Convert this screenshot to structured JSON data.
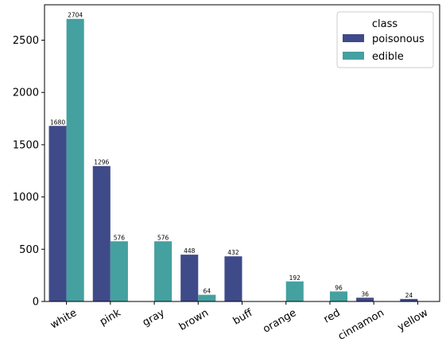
{
  "chart_data": {
    "type": "bar",
    "categories": [
      "white",
      "pink",
      "gray",
      "brown",
      "buff",
      "orange",
      "red",
      "cinnamon",
      "yellow"
    ],
    "series": [
      {
        "name": "poisonous",
        "color": "#3f4a89",
        "values": [
          1680,
          1296,
          0,
          448,
          432,
          0,
          0,
          36,
          24
        ]
      },
      {
        "name": "edible",
        "color": "#45a0a0",
        "values": [
          2704,
          576,
          576,
          64,
          0,
          192,
          96,
          0,
          0
        ]
      }
    ],
    "data_labels": [
      {
        "series": 0,
        "category": 0,
        "text": "1680"
      },
      {
        "series": 1,
        "category": 0,
        "text": "2704"
      },
      {
        "series": 0,
        "category": 1,
        "text": "1296"
      },
      {
        "series": 1,
        "category": 1,
        "text": "576"
      },
      {
        "series": 1,
        "category": 2,
        "text": "576"
      },
      {
        "series": 0,
        "category": 3,
        "text": "448"
      },
      {
        "series": 1,
        "category": 3,
        "text": "64"
      },
      {
        "series": 0,
        "category": 4,
        "text": "432"
      },
      {
        "series": 1,
        "category": 5,
        "text": "192"
      },
      {
        "series": 1,
        "category": 6,
        "text": "96"
      },
      {
        "series": 0,
        "category": 7,
        "text": "36"
      },
      {
        "series": 0,
        "category": 8,
        "text": "24"
      }
    ],
    "yticks": [
      0,
      500,
      1000,
      1500,
      2000,
      2500
    ],
    "ylim": [
      0,
      2839
    ],
    "xlabel": "",
    "ylabel": "",
    "title": "",
    "grid": false,
    "legend": {
      "title": "class",
      "placement": "top-right"
    }
  }
}
